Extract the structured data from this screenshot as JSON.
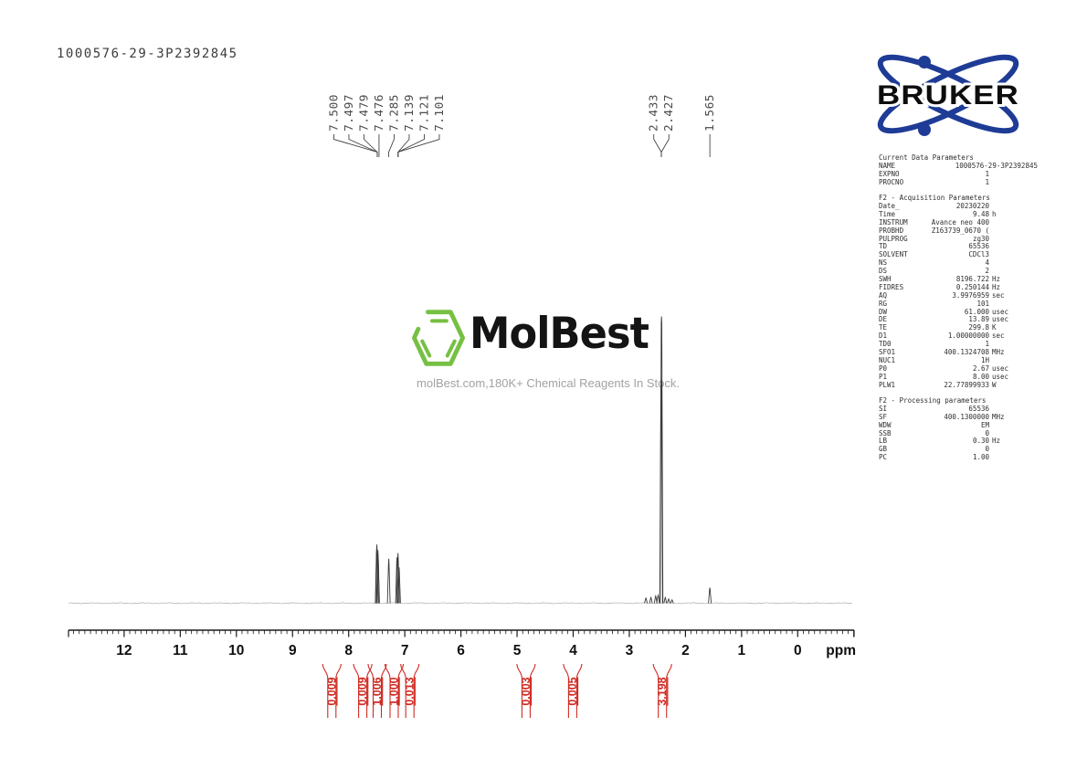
{
  "title": "1000576-29-3P2392845",
  "colors": {
    "integral_red": "#cf2b22",
    "trace_gray": "#3b3b3b",
    "noise_gray": "#b6b6b6",
    "axis_black": "#1b1b1b",
    "shift_label_gray": "#4a4a4a",
    "bruker_blue": "#1e3c96",
    "molbest_green": "#76c043"
  },
  "bruker": {
    "name": "BRUKER"
  },
  "watermark": {
    "brand": "MolBest",
    "tagline": "molBest.com,180K+ Chemical Reagents In Stock."
  },
  "params": {
    "rows": [
      {
        "t": "h",
        "k": "Current Data Parameters"
      },
      {
        "t": "r",
        "k": "NAME",
        "v": "1000576-29-3P2392845",
        "u": "",
        "w": 1
      },
      {
        "t": "r",
        "k": "EXPNO",
        "v": "1",
        "u": ""
      },
      {
        "t": "r",
        "k": "PROCNO",
        "v": "1",
        "u": ""
      },
      {
        "t": "b"
      },
      {
        "t": "h",
        "k": "F2 - Acquisition Parameters"
      },
      {
        "t": "r",
        "k": "Date_",
        "v": "20230220",
        "u": ""
      },
      {
        "t": "r",
        "k": "Time",
        "v": "9.48",
        "u": "h"
      },
      {
        "t": "r",
        "k": "INSTRUM",
        "v": "Avance neo 400",
        "u": ""
      },
      {
        "t": "r",
        "k": "PROBHD",
        "v": "Z163739_0670 (",
        "u": ""
      },
      {
        "t": "r",
        "k": "PULPROG",
        "v": "zg30",
        "u": ""
      },
      {
        "t": "r",
        "k": "TD",
        "v": "65536",
        "u": ""
      },
      {
        "t": "r",
        "k": "SOLVENT",
        "v": "CDCl3",
        "u": ""
      },
      {
        "t": "r",
        "k": "NS",
        "v": "4",
        "u": ""
      },
      {
        "t": "r",
        "k": "DS",
        "v": "2",
        "u": ""
      },
      {
        "t": "r",
        "k": "SWH",
        "v": "8196.722",
        "u": "Hz"
      },
      {
        "t": "r",
        "k": "FIDRES",
        "v": "0.250144",
        "u": "Hz"
      },
      {
        "t": "r",
        "k": "AQ",
        "v": "3.9976959",
        "u": "sec"
      },
      {
        "t": "r",
        "k": "RG",
        "v": "101",
        "u": ""
      },
      {
        "t": "r",
        "k": "DW",
        "v": "61.000",
        "u": "usec"
      },
      {
        "t": "r",
        "k": "DE",
        "v": "13.89",
        "u": "usec"
      },
      {
        "t": "r",
        "k": "TE",
        "v": "299.8",
        "u": "K"
      },
      {
        "t": "r",
        "k": "D1",
        "v": "1.00000000",
        "u": "sec"
      },
      {
        "t": "r",
        "k": "TD0",
        "v": "1",
        "u": ""
      },
      {
        "t": "r",
        "k": "SFO1",
        "v": "400.1324708",
        "u": "MHz"
      },
      {
        "t": "r",
        "k": "NUC1",
        "v": "1H",
        "u": ""
      },
      {
        "t": "r",
        "k": "P0",
        "v": "2.67",
        "u": "usec"
      },
      {
        "t": "r",
        "k": "P1",
        "v": "8.00",
        "u": "usec"
      },
      {
        "t": "r",
        "k": "PLW1",
        "v": "22.77899933",
        "u": "W"
      },
      {
        "t": "b"
      },
      {
        "t": "h",
        "k": "F2 - Processing parameters"
      },
      {
        "t": "r",
        "k": "SI",
        "v": "65536",
        "u": ""
      },
      {
        "t": "r",
        "k": "SF",
        "v": "400.1300000",
        "u": "MHz"
      },
      {
        "t": "r",
        "k": "WDW",
        "v": "EM",
        "u": ""
      },
      {
        "t": "r",
        "k": "SSB",
        "v": "0",
        "u": ""
      },
      {
        "t": "r",
        "k": "LB",
        "v": "0.30",
        "u": "Hz"
      },
      {
        "t": "r",
        "k": "GB",
        "v": "0",
        "u": ""
      },
      {
        "t": "r",
        "k": "PC",
        "v": "1.00",
        "u": ""
      }
    ]
  },
  "chart_data": {
    "type": "line",
    "title": "1H NMR spectrum (400 MHz, CDCl3)",
    "xlabel": "ppm",
    "ylabel": "",
    "xlim": [
      13.0,
      -1.0
    ],
    "x_major_ticks": [
      12,
      11,
      10,
      9,
      8,
      7,
      6,
      5,
      4,
      3,
      2,
      1,
      0
    ],
    "x_minor_step": 0.1,
    "grid": false,
    "peaks": [
      {
        "ppm": 7.5,
        "rel": 0.195
      },
      {
        "ppm": 7.497,
        "rel": 0.205
      },
      {
        "ppm": 7.479,
        "rel": 0.185
      },
      {
        "ppm": 7.476,
        "rel": 0.17
      },
      {
        "ppm": 7.285,
        "rel": 0.155
      },
      {
        "ppm": 7.139,
        "rel": 0.16
      },
      {
        "ppm": 7.121,
        "rel": 0.175
      },
      {
        "ppm": 7.101,
        "rel": 0.125
      },
      {
        "ppm": 2.705,
        "rel": 0.018
      },
      {
        "ppm": 2.615,
        "rel": 0.02
      },
      {
        "ppm": 2.53,
        "rel": 0.025
      },
      {
        "ppm": 2.487,
        "rel": 0.028
      },
      {
        "ppm": 2.433,
        "rel": 0.78
      },
      {
        "ppm": 2.427,
        "rel": 1.0
      },
      {
        "ppm": 2.36,
        "rel": 0.02
      },
      {
        "ppm": 2.3,
        "rel": 0.015
      },
      {
        "ppm": 2.24,
        "rel": 0.012
      },
      {
        "ppm": 1.565,
        "rel": 0.054
      }
    ],
    "peak_label_groups": [
      {
        "labels": [
          "7.500",
          "7.497",
          "7.479",
          "7.476"
        ],
        "target_ppm": 7.49
      },
      {
        "labels": [
          "7.285"
        ],
        "target_ppm": 7.285
      },
      {
        "labels": [
          "7.139",
          "7.121",
          "7.101"
        ],
        "target_ppm": 7.12
      },
      {
        "labels": [
          "2.433",
          "2.427"
        ],
        "target_ppm": 2.43
      },
      {
        "labels": [
          "1.565"
        ],
        "target_ppm": 1.565
      }
    ],
    "integrals": [
      {
        "ppm": 8.3,
        "value": "0.009"
      },
      {
        "ppm": 7.75,
        "value": "0.009"
      },
      {
        "ppm": 7.49,
        "value": "1.006"
      },
      {
        "ppm": 7.19,
        "value": "1.000"
      },
      {
        "ppm": 6.91,
        "value": "0.013"
      },
      {
        "ppm": 4.84,
        "value": "0.003"
      },
      {
        "ppm": 4.01,
        "value": "0.005"
      },
      {
        "ppm": 2.41,
        "value": "3.198"
      }
    ]
  }
}
